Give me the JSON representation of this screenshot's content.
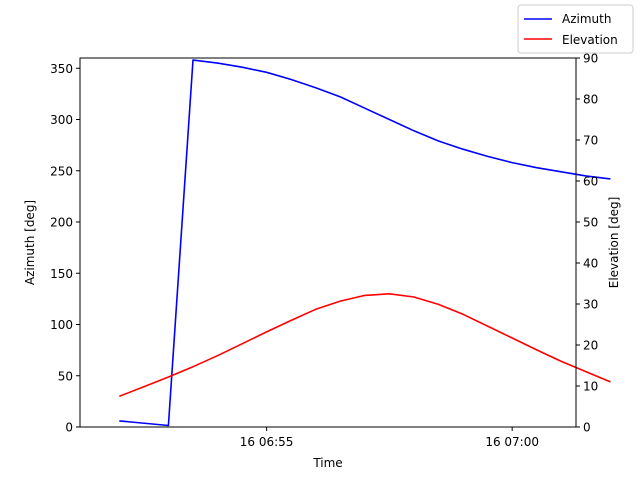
{
  "chart_data": {
    "type": "line",
    "xlabel": "Time",
    "ylabel_left": "Azimuth [deg]",
    "ylabel_right": "Elevation [deg]",
    "x_minutes_range": [
      -3.8,
      6.3
    ],
    "x_ticks": [
      {
        "minute": 0,
        "label": "16 06:55"
      },
      {
        "minute": 5,
        "label": "16 07:00"
      }
    ],
    "ylim_left": [
      0,
      360
    ],
    "yticks_left": [
      0,
      50,
      100,
      150,
      200,
      250,
      300,
      350
    ],
    "ylim_right": [
      0,
      90
    ],
    "yticks_right": [
      0,
      10,
      20,
      30,
      40,
      50,
      60,
      70,
      80,
      90
    ],
    "grid": false,
    "legend_position": "top-right, outside plot",
    "series": [
      {
        "name": "Azimuth",
        "axis": "left",
        "color": "#0000ff",
        "x": [
          -3.0,
          -2.0,
          -1.5,
          -1.0,
          -0.5,
          0.0,
          0.5,
          1.0,
          1.5,
          2.0,
          2.5,
          3.0,
          3.5,
          4.0,
          4.5,
          5.0,
          5.5,
          6.0,
          6.5,
          7.0
        ],
        "values": [
          6,
          1.5,
          358,
          355,
          351,
          346,
          339,
          331,
          322,
          311,
          300,
          289,
          279,
          271,
          264,
          258,
          253,
          249,
          245,
          242
        ]
      },
      {
        "name": "Elevation",
        "axis": "right",
        "color": "#ff0000",
        "x": [
          -3.0,
          -2.5,
          -2.0,
          -1.5,
          -1.0,
          -0.5,
          0.0,
          0.5,
          1.0,
          1.5,
          2.0,
          2.5,
          3.0,
          3.5,
          4.0,
          4.5,
          5.0,
          5.5,
          6.0,
          6.5,
          7.0
        ],
        "values": [
          7.5,
          9.8,
          12.2,
          14.7,
          17.4,
          20.3,
          23.2,
          26.0,
          28.7,
          30.7,
          32.1,
          32.5,
          31.7,
          29.9,
          27.5,
          24.6,
          21.7,
          18.8,
          16.0,
          13.5,
          11.0
        ]
      }
    ]
  }
}
